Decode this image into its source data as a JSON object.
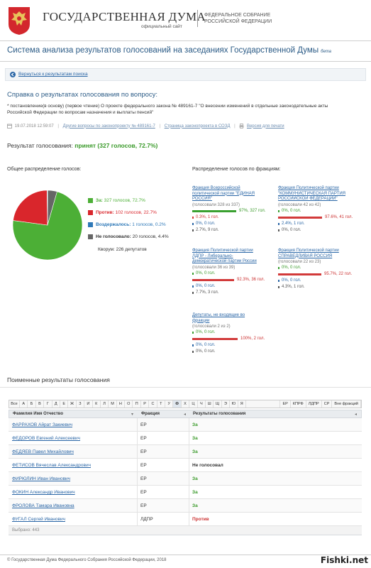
{
  "header": {
    "title": "ГОСУДАРСТВЕННАЯ ДУМА",
    "subtitle": "официальный сайт",
    "federal_line1": "ФЕДЕРАЛЬНОЕ СОБРАНИЕ",
    "federal_line2": "РОССИЙСКОЙ ФЕДЕРАЦИИ"
  },
  "system": {
    "title": "Система анализа результатов голосований на заседаниях Государственной Думы",
    "beta": "бета"
  },
  "back": {
    "label": "Вернуться к результатам поиска"
  },
  "reference": {
    "title": "Справка о результатах голосования по вопросу:",
    "desc_line1": "* постановление(в основу) (первое чтение) О проекте федерального закона № 489161-7 \"О внесении изменений в отдельные законодательные акты",
    "desc_line2": "Российской Федерации по вопросам назначения и выплаты пенсий\""
  },
  "meta": {
    "datetime": "19.07.2018 12:59:07",
    "other_votes": "Другие вопросы по законопроекту № 489161-7",
    "sozd": "Страница законопроекта в СОЗД",
    "print": "Версия для печати"
  },
  "result": {
    "prefix": "Результат голосования:",
    "value": "принят (327 голосов, 72.7%)"
  },
  "sections": {
    "overall": "Общее распределение голосов:",
    "factions": "Распределение голосов по фракциям:"
  },
  "overall": {
    "colors": {
      "za": "#4caf36",
      "protiv": "#d9262c",
      "vozd": "#2f79b8",
      "ne": "#666666"
    },
    "legend": [
      {
        "key": "za",
        "label": "За:",
        "text": "327 голосов, 72.7%",
        "value": 327
      },
      {
        "key": "protiv",
        "label": "Против:",
        "text": "102 голосов, 22.7%",
        "value": 102
      },
      {
        "key": "vozd",
        "label": "Воздержалось:",
        "text": "1 голосов, 0.2%",
        "value": 1
      },
      {
        "key": "ne",
        "label": "Не голосовало:",
        "text": "20 голосов, 4.4%",
        "value": 20
      }
    ],
    "quorum": "Кворум: 226 депутатов"
  },
  "factions": [
    {
      "name_lines": [
        "Фракция Всероссийской",
        "политической партии \"ЕДИНАЯ",
        "РОССИЯ\""
      ],
      "count": "(голосовали 328 из 337)",
      "rows": [
        {
          "kind": "bar",
          "color": "green",
          "pct": 97,
          "text": "97%, 327 гол."
        },
        {
          "kind": "text",
          "color": "red",
          "text": "0.3%, 1 гол."
        },
        {
          "kind": "text",
          "color": "blue",
          "text": "0%, 0 гол."
        },
        {
          "kind": "text",
          "color": "gray",
          "text": "2.7%, 9 гол."
        }
      ]
    },
    {
      "name_lines": [
        "Фракция Политической партии",
        "\"КОММУНИСТИЧЕСКАЯ ПАРТИЯ",
        "РОССИЙСКОЙ ФЕДЕРАЦИИ\""
      ],
      "count": "(голосовали 42 из 42)",
      "rows": [
        {
          "kind": "text",
          "color": "green",
          "text": "0%, 0 гол."
        },
        {
          "kind": "bar",
          "color": "red",
          "pct": 97.6,
          "text": "97.6%, 41 гол."
        },
        {
          "kind": "text",
          "color": "blue",
          "text": "2.4%, 1 гол."
        },
        {
          "kind": "text",
          "color": "gray",
          "text": "0%, 0 гол."
        }
      ]
    },
    {
      "name_lines": [
        "Фракция Политической партии",
        "ЛДПР - Либерально-",
        "демократической партии России"
      ],
      "count": "(голосовали 36 из 39)",
      "rows": [
        {
          "kind": "text",
          "color": "green",
          "text": "0%, 0 гол."
        },
        {
          "kind": "bar",
          "color": "red",
          "pct": 92.3,
          "text": "92.3%, 36 гол."
        },
        {
          "kind": "text",
          "color": "blue",
          "text": "0%, 0 гол."
        },
        {
          "kind": "text",
          "color": "gray",
          "text": "7.7%, 3 гол."
        }
      ]
    },
    {
      "name_lines": [
        "Фракция Политической партии",
        "СПРАВЕДЛИВАЯ РОССИЯ"
      ],
      "count": "(голосовали 22 из 23)",
      "rows": [
        {
          "kind": "text",
          "color": "green",
          "text": "0%, 0 гол."
        },
        {
          "kind": "bar",
          "color": "red",
          "pct": 95.7,
          "text": "95.7%, 22 гол."
        },
        {
          "kind": "text",
          "color": "blue",
          "text": "0%, 0 гол."
        },
        {
          "kind": "text",
          "color": "gray",
          "text": "4.3%, 1 гол."
        }
      ]
    },
    {
      "name_lines": [
        "Депутаты, не входящие во",
        "фракции"
      ],
      "count": "(голосовали 2 из 2)",
      "rows": [
        {
          "kind": "text",
          "color": "green",
          "text": "0%, 0 гол."
        },
        {
          "kind": "bar",
          "color": "red",
          "pct": 100,
          "text": "100%, 2 гол."
        },
        {
          "kind": "text",
          "color": "blue",
          "text": "0%, 0 гол."
        },
        {
          "kind": "text",
          "color": "gray",
          "text": "0%, 0 гол."
        }
      ]
    }
  ],
  "names": {
    "title": "Поименные результаты голосования",
    "alphabet": [
      "Все",
      "А",
      "Б",
      "В",
      "Г",
      "Д",
      "Е",
      "Ж",
      "З",
      "И",
      "К",
      "Л",
      "М",
      "Н",
      "О",
      "П",
      "Р",
      "С",
      "Т",
      "У",
      "Ф",
      "Х",
      "Ц",
      "Ч",
      "Ш",
      "Щ",
      "Э",
      "Ю",
      "Я"
    ],
    "factions_filter": [
      "ЕР",
      "КПРФ",
      "ЛДПР",
      "СР",
      "Вне фракций"
    ],
    "columns": {
      "name": "Фамилия Имя Отчество",
      "faction": "Фракция",
      "result": "Результаты голосования"
    },
    "rows": [
      {
        "name": "ФАРРАХОВ Айрат Закиевич",
        "faction": "ЕР",
        "result": "За",
        "res": "za"
      },
      {
        "name": "ФЕДОРОВ Евгений Алексеевич",
        "faction": "ЕР",
        "result": "За",
        "res": "za"
      },
      {
        "name": "ФЕДЯЕВ Павел Михайлович",
        "faction": "ЕР",
        "result": "За",
        "res": "za"
      },
      {
        "name": "ФЕТИСОВ Вячеслав Александрович",
        "faction": "ЕР",
        "result": "Не голосовал",
        "res": "ng"
      },
      {
        "name": "ФИРЮЛИН Иван Иванович",
        "faction": "ЕР",
        "result": "За",
        "res": "za"
      },
      {
        "name": "ФОКИН Александр Иванович",
        "faction": "ЕР",
        "result": "За",
        "res": "za"
      },
      {
        "name": "ФРОЛОВА Тамара Ивановна",
        "faction": "ЕР",
        "result": "За",
        "res": "za"
      },
      {
        "name": "ФУГАЛ Сергей Иванович",
        "faction": "ЛДПР",
        "result": "Против",
        "res": "pr"
      }
    ],
    "selected": "Выбрано: 443"
  },
  "footer": {
    "copyright": "© Государственная Дума Федерального Собрания Российской Федерации, 2018"
  },
  "watermark": "Fishki.net"
}
